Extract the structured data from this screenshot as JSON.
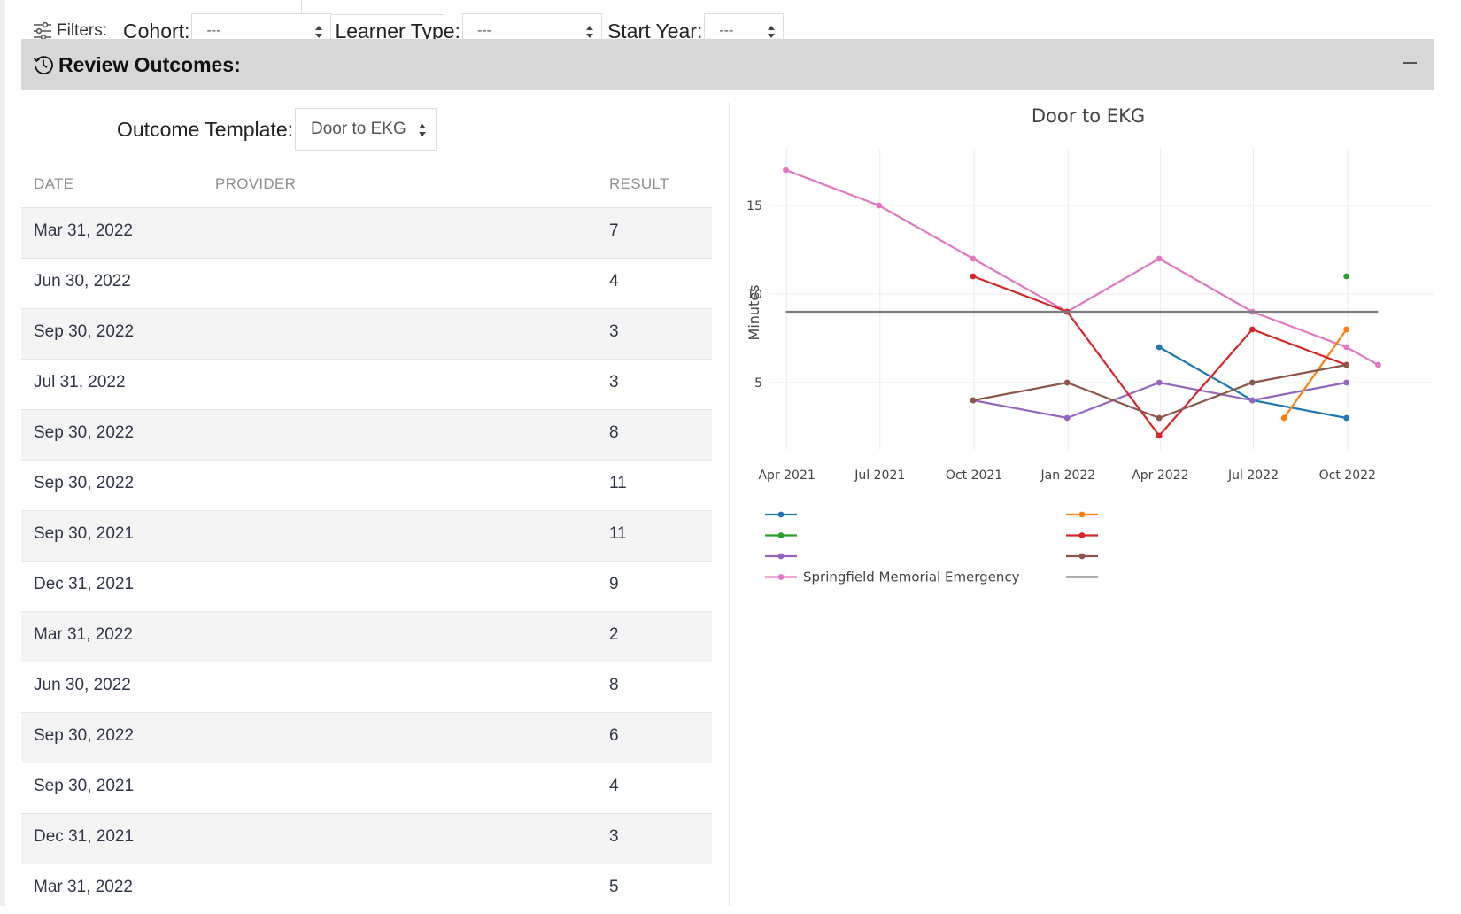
{
  "filters": {
    "label": "Filters:",
    "cohort": {
      "label": "Cohort:",
      "value": "---"
    },
    "learner_type": {
      "label": "Learner Type:",
      "value": "---"
    },
    "start_year": {
      "label": "Start Year:",
      "value": "---"
    }
  },
  "section": {
    "title": "Review Outcomes:"
  },
  "template": {
    "label": "Outcome Template:",
    "value": "Door to EKG"
  },
  "table": {
    "headers": {
      "date": "DATE",
      "provider": "PROVIDER",
      "result": "RESULT"
    },
    "rows": [
      {
        "date": "Mar 31, 2022",
        "provider": "",
        "result": "7"
      },
      {
        "date": "Jun 30, 2022",
        "provider": "",
        "result": "4"
      },
      {
        "date": "Sep 30, 2022",
        "provider": "",
        "result": "3"
      },
      {
        "date": "Jul 31, 2022",
        "provider": "",
        "result": "3"
      },
      {
        "date": "Sep 30, 2022",
        "provider": "",
        "result": "8"
      },
      {
        "date": "Sep 30, 2022",
        "provider": "",
        "result": "11"
      },
      {
        "date": "Sep 30, 2021",
        "provider": "",
        "result": "11"
      },
      {
        "date": "Dec 31, 2021",
        "provider": "",
        "result": "9"
      },
      {
        "date": "Mar 31, 2022",
        "provider": "",
        "result": "2"
      },
      {
        "date": "Jun 30, 2022",
        "provider": "",
        "result": "8"
      },
      {
        "date": "Sep 30, 2022",
        "provider": "",
        "result": "6"
      },
      {
        "date": "Sep 30, 2021",
        "provider": "",
        "result": "4"
      },
      {
        "date": "Dec 31, 2021",
        "provider": "",
        "result": "3"
      },
      {
        "date": "Mar 31, 2022",
        "provider": "",
        "result": "5"
      }
    ]
  },
  "chart_data": {
    "type": "line",
    "title": "Door to EKG",
    "xlabel": "",
    "ylabel": "Minutes",
    "x_ticks": [
      "Apr 2021",
      "Jul 2021",
      "Oct 2021",
      "Jan 2022",
      "Apr 2022",
      "Jul 2022",
      "Oct 2022"
    ],
    "y_ticks": [
      5,
      10,
      15
    ],
    "xlim": [
      "2021-03-15",
      "2022-12-25"
    ],
    "ylim": [
      1.2,
      18.2
    ],
    "grid": true,
    "legend_position": "bottom",
    "series": [
      {
        "name": "",
        "color": "#1f77b4",
        "x": [
          "2022-03-31",
          "2022-06-30",
          "2022-09-30"
        ],
        "y": [
          7,
          4,
          3
        ],
        "mode": "lines+markers"
      },
      {
        "name": "",
        "color": "#2ca02c",
        "x": [
          "2022-09-30"
        ],
        "y": [
          11
        ],
        "mode": "lines+markers"
      },
      {
        "name": "",
        "color": "#9467bd",
        "x": [
          "2021-09-30",
          "2021-12-31",
          "2022-03-31",
          "2022-06-30",
          "2022-09-30"
        ],
        "y": [
          4,
          3,
          5,
          4,
          5
        ],
        "mode": "lines+markers"
      },
      {
        "name": "Springfield Memorial Emergency",
        "color": "#e377c2",
        "x": [
          "2021-03-31",
          "2021-06-30",
          "2021-09-30",
          "2021-12-31",
          "2022-03-31",
          "2022-06-30",
          "2022-09-30",
          "2022-10-31"
        ],
        "y": [
          17,
          15,
          12,
          9,
          12,
          9,
          7,
          6
        ],
        "mode": "lines+markers"
      },
      {
        "name": "",
        "color": "#ff7f0e",
        "x": [
          "2022-07-31",
          "2022-09-30"
        ],
        "y": [
          3,
          8
        ],
        "mode": "lines+markers"
      },
      {
        "name": "",
        "color": "#d62728",
        "x": [
          "2021-09-30",
          "2021-12-31",
          "2022-03-31",
          "2022-06-30",
          "2022-09-30"
        ],
        "y": [
          11,
          9,
          2,
          8,
          6
        ],
        "mode": "lines+markers"
      },
      {
        "name": "",
        "color": "#8c564b",
        "x": [
          "2021-09-30",
          "2021-12-31",
          "2022-03-31",
          "2022-06-30",
          "2022-09-30"
        ],
        "y": [
          4,
          5,
          3,
          5,
          6
        ],
        "mode": "lines+markers"
      },
      {
        "name": "",
        "color": "#7f7f7f",
        "x": [
          "2021-03-31",
          "2022-10-31"
        ],
        "y": [
          9,
          9
        ],
        "mode": "lines"
      }
    ]
  }
}
